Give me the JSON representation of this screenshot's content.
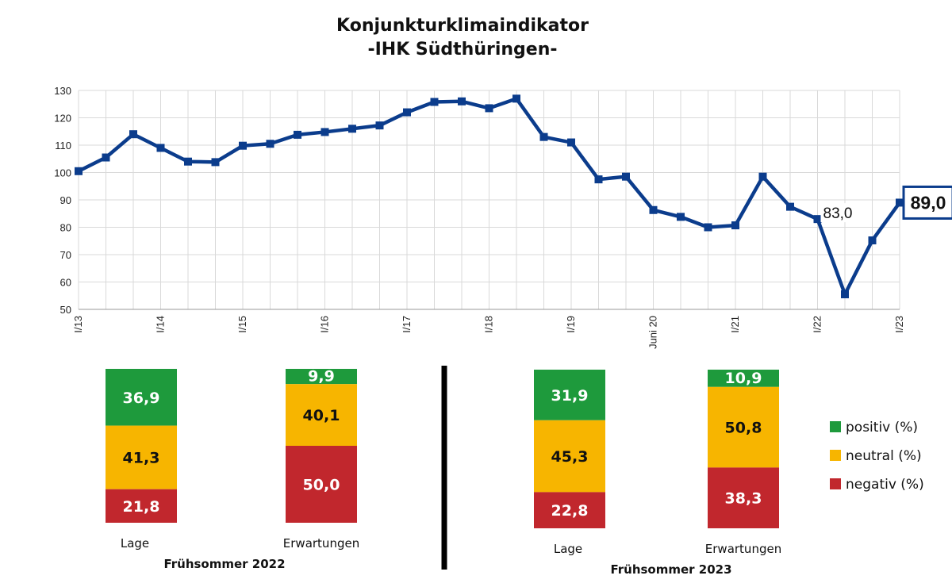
{
  "title": {
    "line1": "Konjunkturklimaindikator",
    "line2": "-IHK Südthüringen-"
  },
  "colors": {
    "line": "#0b3c8c",
    "grid": "#d9d9d9",
    "positiv": "#1e9a3c",
    "neutral": "#f7b500",
    "negativ": "#c1272d",
    "divider": "#000000"
  },
  "chart_data": [
    {
      "type": "line",
      "ylim": [
        50,
        130
      ],
      "yticks": [
        50,
        60,
        70,
        80,
        90,
        100,
        110,
        120,
        130
      ],
      "grid": true,
      "x_tick_labels": [
        "I/13",
        "I/14",
        "I/15",
        "I/16",
        "I/17",
        "I/18",
        "I/19",
        "Juni 20",
        "I/21",
        "I/22",
        "I/23"
      ],
      "series": [
        {
          "values": [
            100.5,
            105.5,
            114,
            109,
            104,
            103.8,
            109.8,
            110.5,
            113.8,
            114.8,
            116,
            117.2,
            122,
            125.8,
            126,
            123.5,
            127,
            113,
            111,
            97.5,
            98.5,
            86.3,
            83.8,
            80,
            80.7,
            98.5,
            87.5,
            83,
            55.5,
            75.2,
            89
          ]
        }
      ],
      "annotations": [
        {
          "label": "83,0",
          "point_index": 27,
          "boxed": false
        },
        {
          "label": "89,0",
          "point_index": 30,
          "boxed": true
        }
      ]
    },
    {
      "type": "bar",
      "stacked": true,
      "period": "Frühsommer 2022",
      "categories": [
        "Lage",
        "Erwartungen"
      ],
      "series": [
        {
          "name": "positiv (%)",
          "values": [
            36.9,
            9.9
          ],
          "labels": [
            "36,9",
            "9,9"
          ]
        },
        {
          "name": "neutral (%)",
          "values": [
            41.3,
            40.1
          ],
          "labels": [
            "41,3",
            "40,1"
          ]
        },
        {
          "name": "negativ (%)",
          "values": [
            21.8,
            50.0
          ],
          "labels": [
            "21,8",
            "50,0"
          ]
        }
      ]
    },
    {
      "type": "bar",
      "stacked": true,
      "period": "Frühsommer 2023",
      "categories": [
        "Lage",
        "Erwartungen"
      ],
      "series": [
        {
          "name": "positiv (%)",
          "values": [
            31.9,
            10.9
          ],
          "labels": [
            "31,9",
            "10,9"
          ]
        },
        {
          "name": "neutral (%)",
          "values": [
            45.3,
            50.8
          ],
          "labels": [
            "45,3",
            "50,8"
          ]
        },
        {
          "name": "negativ (%)",
          "values": [
            22.8,
            38.3
          ],
          "labels": [
            "22,8",
            "38,3"
          ]
        }
      ]
    }
  ],
  "legend": [
    {
      "name": "positiv (%)",
      "color_key": "positiv"
    },
    {
      "name": "neutral (%)",
      "color_key": "neutral"
    },
    {
      "name": "negativ (%)",
      "color_key": "negativ"
    }
  ]
}
